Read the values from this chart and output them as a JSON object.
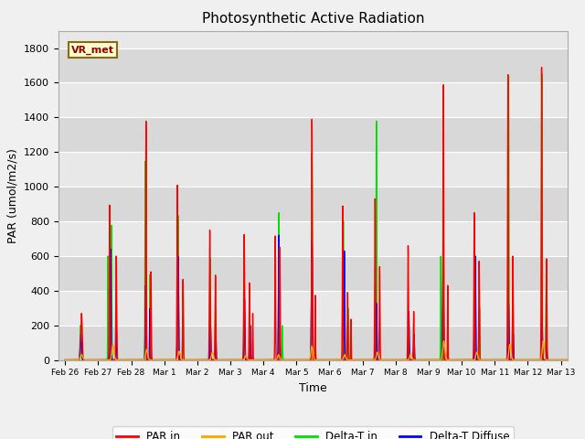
{
  "title": "Photosynthetic Active Radiation",
  "ylabel": "PAR (umol/m2/s)",
  "xlabel": "Time",
  "annotation_text": "VR_met",
  "annotation_box_color": "#ffffcc",
  "annotation_text_color": "#8b0000",
  "annotation_border_color": "#8b6914",
  "ylim": [
    0,
    1900
  ],
  "yticks": [
    0,
    200,
    400,
    600,
    800,
    1000,
    1200,
    1400,
    1600,
    1800
  ],
  "xtick_labels": [
    "Feb 26",
    "Feb 27",
    "Feb 28",
    "Mar 1",
    "Mar 2",
    "Mar 3",
    "Mar 4",
    "Mar 5",
    "Mar 6",
    "Mar 7",
    "Mar 8",
    "Mar 9",
    "Mar 10",
    "Mar 11",
    "Mar 12",
    "Mar 13"
  ],
  "colors": {
    "PAR_in": "#ff0000",
    "PAR_out": "#ffa500",
    "DeltaT_in": "#00dd00",
    "DeltaT_Diffuse": "#0000ff"
  },
  "legend_labels": [
    "PAR in",
    "PAR out",
    "Delta-T in",
    "Delta-T Diffuse"
  ],
  "fig_facecolor": "#f0f0f0",
  "axes_facecolor": "#e8e8e8",
  "grid_color": "#ffffff",
  "linewidth": 1.0,
  "n_points_per_day": 288
}
